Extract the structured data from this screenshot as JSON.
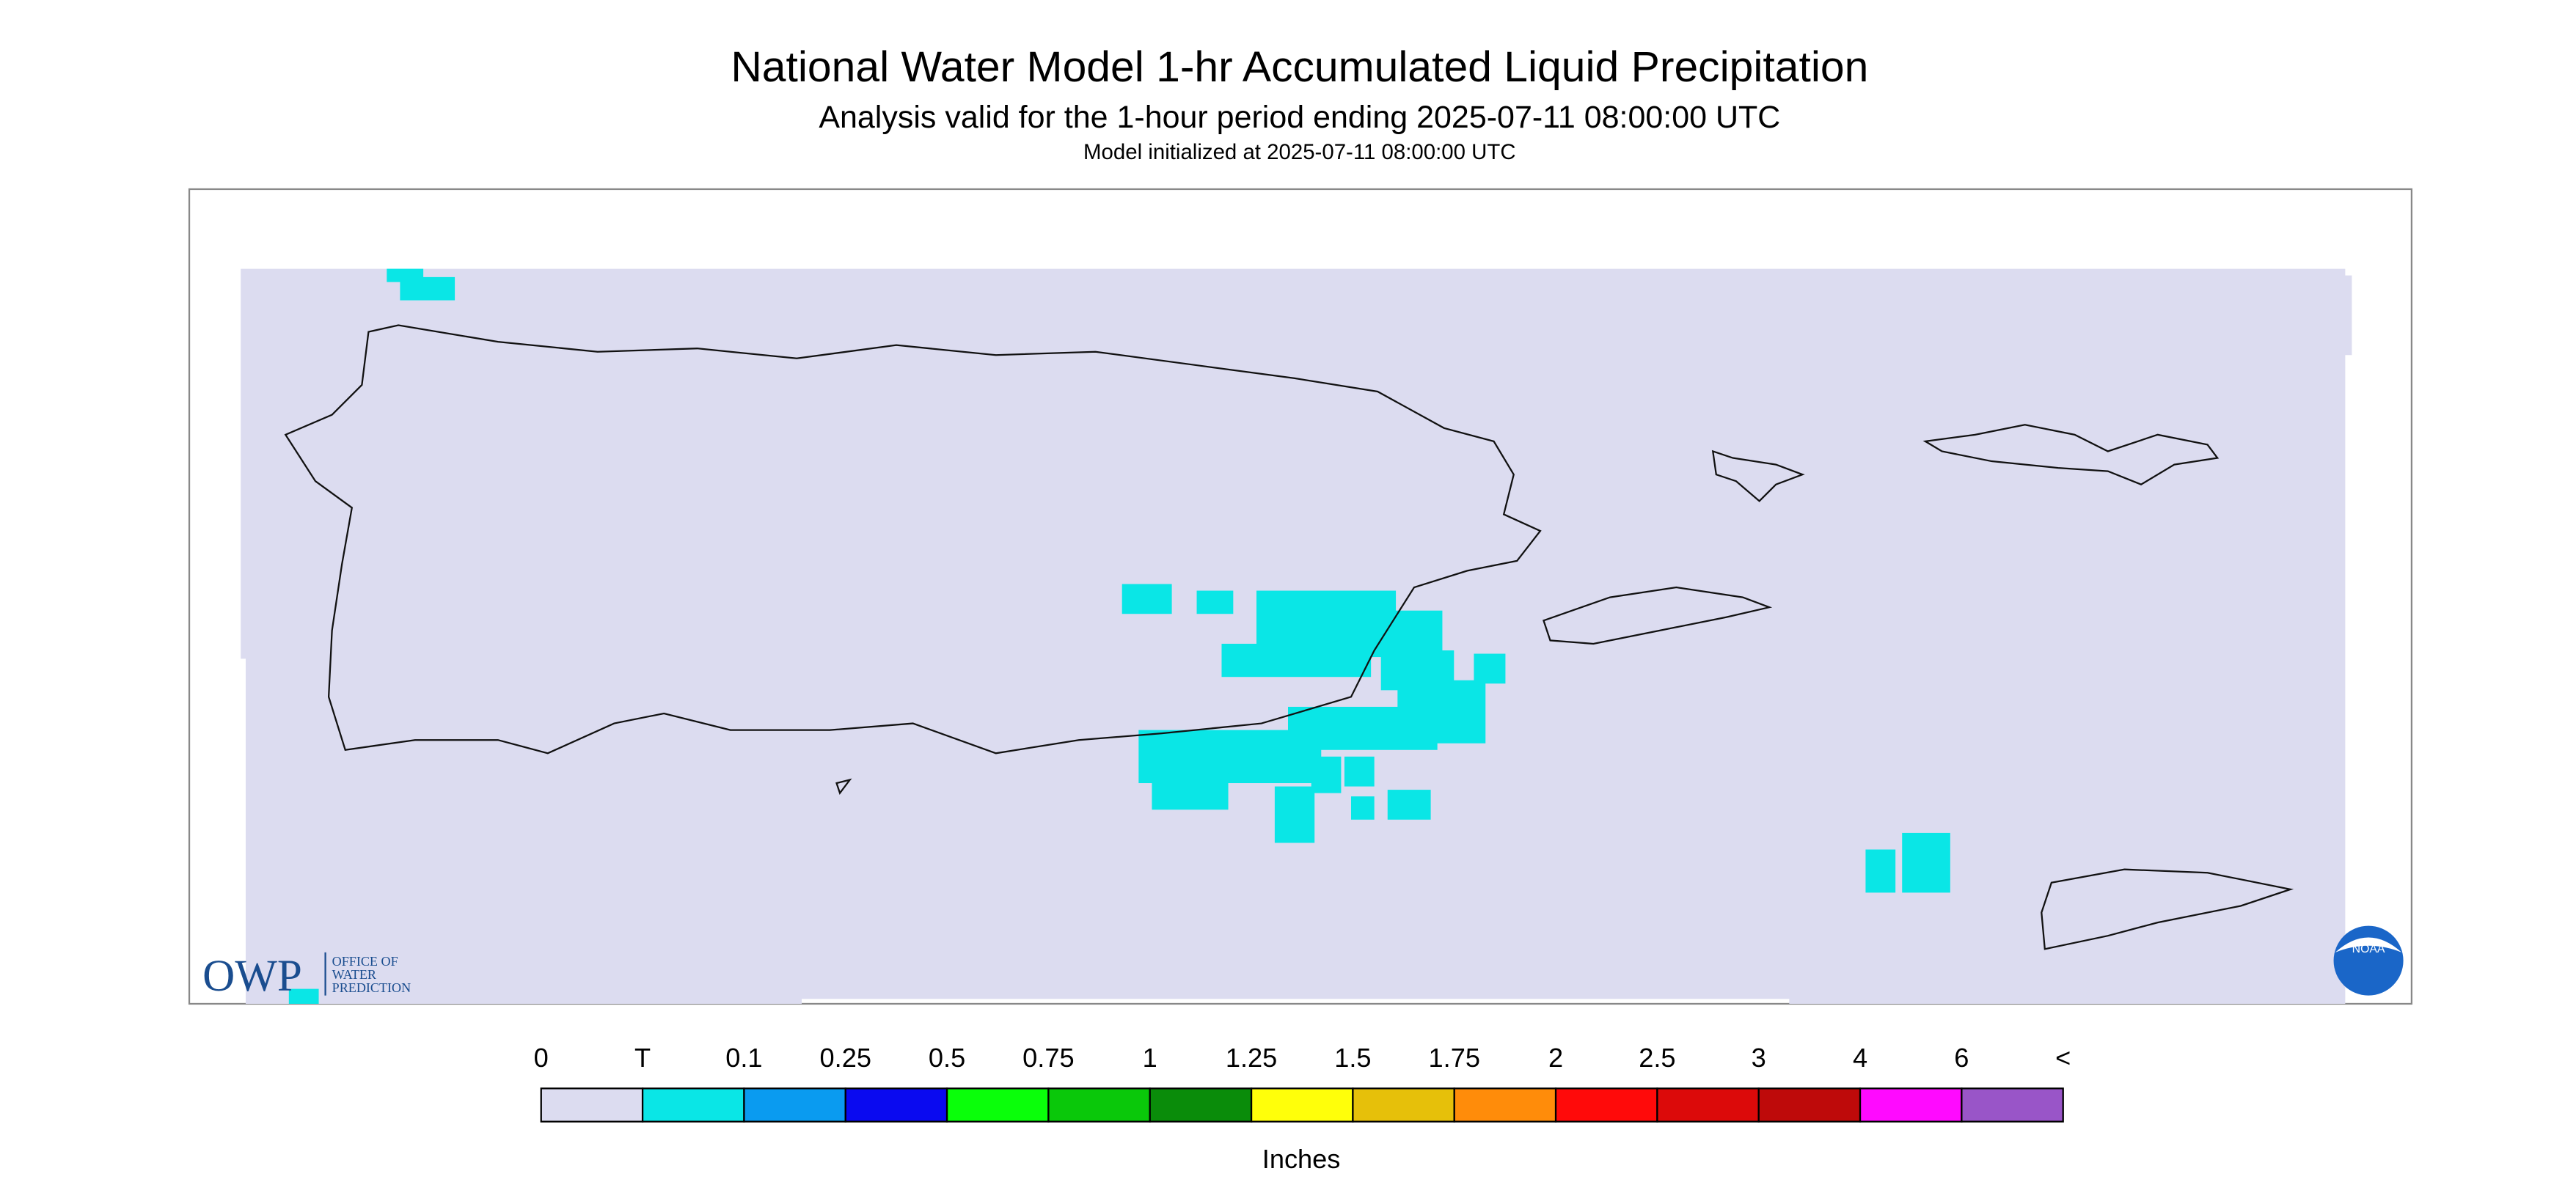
{
  "header": {
    "title": "National Water Model 1-hr Accumulated Liquid Precipitation",
    "subtitle": "Analysis valid for the 1-hour period ending 2025-07-11 08:00:00 UTC",
    "init": "Model initialized at 2025-07-11 08:00:00 UTC"
  },
  "legend": {
    "labels": [
      "0",
      "T",
      "0.1",
      "0.25",
      "0.5",
      "0.75",
      "1",
      "1.25",
      "1.5",
      "1.75",
      "2",
      "2.5",
      "3",
      "4",
      "6",
      "<"
    ],
    "colors": [
      "#dcdcf0",
      "#0ae6e6",
      "#0a9bf0",
      "#0a0af0",
      "#0aff0a",
      "#0ac80a",
      "#0a8c0a",
      "#ffff0a",
      "#e6c00a",
      "#ff8c0a",
      "#ff0a0a",
      "#dc0a0a",
      "#be0a0a",
      "#ff0aff",
      "#9955c8"
    ],
    "unit": "Inches"
  },
  "logo": {
    "owp": "OWP",
    "office": [
      "OFFICE OF",
      "WATER",
      "PREDICTION"
    ],
    "noaa": "NOAA"
  }
}
